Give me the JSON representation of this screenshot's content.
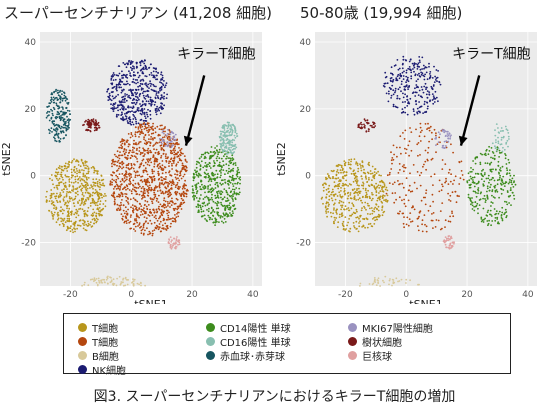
{
  "titles": {
    "left": "スーパーセンチナリアン (41,208 細胞)",
    "right": "50-80歳 (19,994 細胞)"
  },
  "caption": "図3. スーパーセンチナリアンにおけるキラーT細胞の増加",
  "annotation": "キラーT細胞",
  "legend": [
    {
      "key": "T_ochre",
      "label": "T細胞",
      "color": "#b8961c"
    },
    {
      "key": "T_orange",
      "label": "T細胞",
      "color": "#b5470f"
    },
    {
      "key": "B",
      "label": "B細胞",
      "color": "#d8c99a"
    },
    {
      "key": "NK",
      "label": "NK細胞",
      "color": "#1c1c72"
    },
    {
      "key": "CD14",
      "label": "CD14陽性 単球",
      "color": "#3d8c1d"
    },
    {
      "key": "CD16",
      "label": "CD16陽性 単球",
      "color": "#88bfb0"
    },
    {
      "key": "RBC",
      "label": "赤血球･赤芽球",
      "color": "#175560"
    },
    {
      "key": "MKI67",
      "label": "MKI67陽性細胞",
      "color": "#9a92c0"
    },
    {
      "key": "DC",
      "label": "樹状細胞",
      "color": "#7a1a1a"
    },
    {
      "key": "MK",
      "label": "巨核球",
      "color": "#e0a0a0"
    }
  ],
  "chart_data": [
    {
      "type": "scatter",
      "title": "スーパーセンチナリアン (41,208 細胞)",
      "xlabel": "tSNE1",
      "ylabel": "tSNE2",
      "xlim": [
        -30,
        43
      ],
      "ylim": [
        -33,
        43
      ],
      "xticks": [
        -20,
        0,
        20,
        40
      ],
      "yticks": [
        -20,
        0,
        20,
        40
      ],
      "grid": true,
      "annotation": "キラーT細胞",
      "clusters": [
        {
          "key": "NK",
          "center": [
            2,
            25
          ],
          "spread": [
            10,
            10
          ],
          "density": 5
        },
        {
          "key": "T_orange",
          "center": [
            6,
            -1
          ],
          "spread": [
            13,
            17
          ],
          "density": 5
        },
        {
          "key": "T_ochre",
          "center": [
            -18,
            -6
          ],
          "spread": [
            10,
            11
          ],
          "density": 5
        },
        {
          "key": "CD14",
          "center": [
            28,
            -3
          ],
          "spread": [
            8,
            12
          ],
          "density": 5
        },
        {
          "key": "B",
          "center": [
            -6,
            -34
          ],
          "spread": [
            11,
            4
          ],
          "density": 5
        },
        {
          "key": "RBC",
          "center": [
            -24,
            18
          ],
          "spread": [
            4,
            8
          ],
          "density": 5
        },
        {
          "key": "CD16",
          "center": [
            32,
            11
          ],
          "spread": [
            3,
            5
          ],
          "density": 4
        },
        {
          "key": "MKI67",
          "center": [
            12,
            11
          ],
          "spread": [
            3,
            3
          ],
          "density": 1
        },
        {
          "key": "DC",
          "center": [
            -13,
            15
          ],
          "spread": [
            3,
            2
          ],
          "density": 2
        },
        {
          "key": "MK",
          "center": [
            14,
            -20
          ],
          "spread": [
            2,
            2
          ],
          "density": 1
        }
      ]
    },
    {
      "type": "scatter",
      "title": "50-80歳 (19,994 細胞)",
      "xlabel": "tSNE1",
      "ylabel": "tSNE2",
      "xlim": [
        -30,
        43
      ],
      "ylim": [
        -33,
        43
      ],
      "xticks": [
        -20,
        0,
        20,
        40
      ],
      "yticks": [
        -20,
        0,
        20,
        40
      ],
      "grid": true,
      "annotation": "キラーT細胞",
      "clusters": [
        {
          "key": "NK",
          "center": [
            2,
            27
          ],
          "spread": [
            10,
            9
          ],
          "density": 3
        },
        {
          "key": "T_orange",
          "center": [
            6,
            -1
          ],
          "spread": [
            13,
            17
          ],
          "density": 1
        },
        {
          "key": "T_ochre",
          "center": [
            -17,
            -6
          ],
          "spread": [
            11,
            11
          ],
          "density": 4
        },
        {
          "key": "CD14",
          "center": [
            28,
            -3
          ],
          "spread": [
            8,
            12
          ],
          "density": 3
        },
        {
          "key": "B",
          "center": [
            -6,
            -34
          ],
          "spread": [
            11,
            4
          ],
          "density": 3
        },
        {
          "key": "CD16",
          "center": [
            31,
            11
          ],
          "spread": [
            3,
            5
          ],
          "density": 1
        },
        {
          "key": "MKI67",
          "center": [
            12,
            11
          ],
          "spread": [
            3,
            3
          ],
          "density": 1
        },
        {
          "key": "DC",
          "center": [
            -13,
            15
          ],
          "spread": [
            3,
            2
          ],
          "density": 1
        },
        {
          "key": "MK",
          "center": [
            14,
            -20
          ],
          "spread": [
            2,
            2
          ],
          "density": 1
        }
      ]
    }
  ]
}
